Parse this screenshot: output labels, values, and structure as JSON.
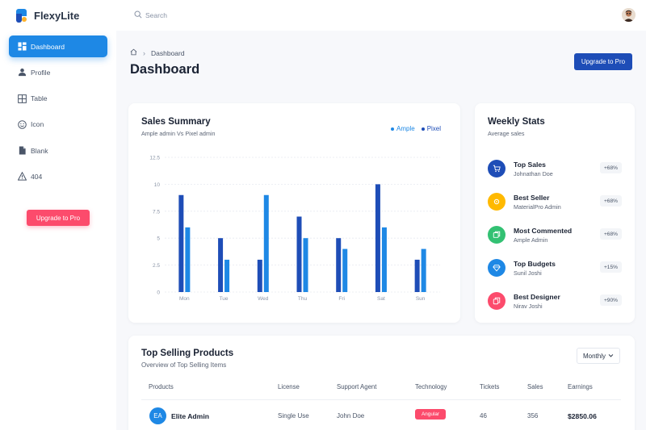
{
  "app": {
    "name": "FlexyLite"
  },
  "sidebar": {
    "items": [
      {
        "label": "Dashboard",
        "icon": "dashboard-icon",
        "active": true
      },
      {
        "label": "Profile",
        "icon": "profile-icon",
        "active": false
      },
      {
        "label": "Table",
        "icon": "table-icon",
        "active": false
      },
      {
        "label": "Icon",
        "icon": "smile-icon",
        "active": false
      },
      {
        "label": "Blank",
        "icon": "file-icon",
        "active": false
      },
      {
        "label": "404",
        "icon": "alert-triangle-icon",
        "active": false
      }
    ],
    "upgrade_label": "Upgrade to Pro"
  },
  "topbar": {
    "search_placeholder": "Search"
  },
  "header": {
    "breadcrumb": "Dashboard",
    "title": "Dashboard",
    "upgrade_label": "Upgrade to Pro"
  },
  "sales_summary": {
    "title": "Sales Summary",
    "subtitle": "Ample admin Vs Pixel admin",
    "legend": [
      {
        "name": "Ample",
        "color": "#1e88e5"
      },
      {
        "name": "Pixel",
        "color": "#1e4db7"
      }
    ]
  },
  "chart_data": {
    "type": "bar",
    "categories": [
      "Mon",
      "Tue",
      "Wed",
      "Thu",
      "Fri",
      "Sat",
      "Sun"
    ],
    "series": [
      {
        "name": "Pixel",
        "color": "#1e4db7",
        "values": [
          9,
          5,
          3,
          7,
          5,
          10,
          3
        ]
      },
      {
        "name": "Ample",
        "color": "#1e88e5",
        "values": [
          6,
          3,
          9,
          5,
          4,
          6,
          4
        ]
      }
    ],
    "yticks": [
      "0",
      "2.5",
      "5",
      "7.5",
      "10",
      "12.5"
    ],
    "ylim": [
      0,
      12.5
    ],
    "grid": true,
    "legend_position": "top-right"
  },
  "weekly_stats": {
    "title": "Weekly Stats",
    "subtitle": "Average sales",
    "items": [
      {
        "title": "Top Sales",
        "sub": "Johnathan Doe",
        "badge": "+68%",
        "color": "#1e4db7",
        "icon": "cart-icon"
      },
      {
        "title": "Best Seller",
        "sub": "MaterialPro Admin",
        "badge": "+68%",
        "color": "#ffb900",
        "icon": "star-icon"
      },
      {
        "title": "Most Commented",
        "sub": "Ample Admin",
        "badge": "+68%",
        "color": "#33c173",
        "icon": "comment-icon"
      },
      {
        "title": "Top Budgets",
        "sub": "Sunil Joshi",
        "badge": "+15%",
        "color": "#1e88e5",
        "icon": "diamond-icon"
      },
      {
        "title": "Best Designer",
        "sub": "Nirav Joshi",
        "badge": "+90%",
        "color": "#fc4b6c",
        "icon": "copy-icon"
      }
    ]
  },
  "top_selling": {
    "title": "Top Selling Products",
    "subtitle": "Overview of Top Selling Items",
    "filter": "Monthly",
    "columns": [
      "Products",
      "License",
      "Support Agent",
      "Technology",
      "Tickets",
      "Sales",
      "Earnings"
    ],
    "rows": [
      {
        "initials": "EA",
        "product": "Elite Admin",
        "license": "Single Use",
        "agent": "John Doe",
        "technology": "Angular",
        "tickets": "46",
        "sales": "356",
        "earnings": "$2850.06"
      }
    ]
  }
}
